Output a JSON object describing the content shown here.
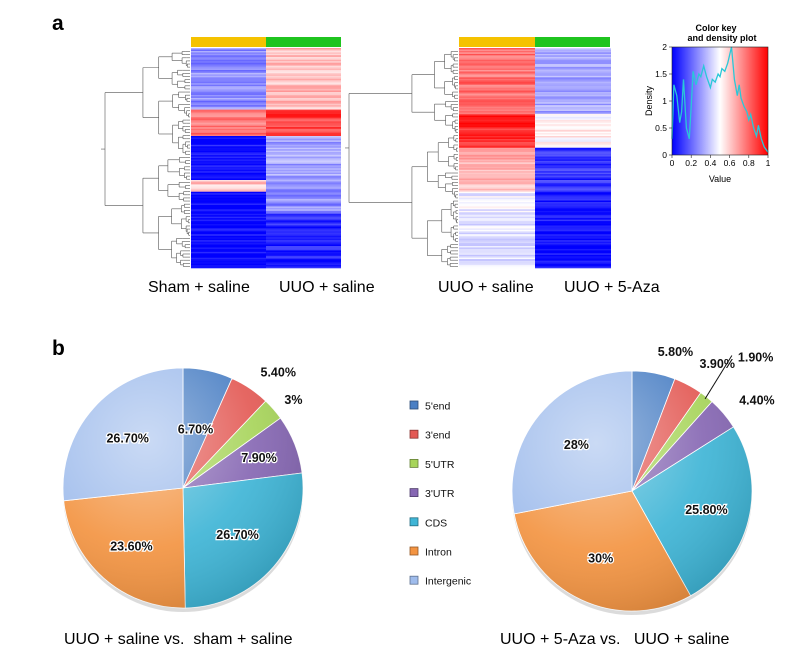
{
  "panel_a": {
    "label": "a",
    "heatmaps": [
      {
        "columns": [
          "Sham + saline",
          "UUO + saline"
        ],
        "group_colors": [
          "#f5c200",
          "#1fc41f"
        ]
      },
      {
        "columns": [
          "UUO + saline",
          "UUO + 5-Aza"
        ],
        "group_colors": [
          "#f5c200",
          "#1fc41f"
        ]
      }
    ],
    "color_key": {
      "title_line1": "Color key",
      "title_line2": "and density plot",
      "xlabel": "Value",
      "ylabel": "Density",
      "xticks": [
        "0",
        "0.2",
        "0.4",
        "0.6",
        "0.8",
        "1"
      ],
      "yticks": [
        "0",
        "0.5",
        "1",
        "1.5",
        "2"
      ],
      "xlim": [
        0,
        1
      ],
      "ylim": [
        0,
        2
      ],
      "gradient": [
        "#0000ff",
        "#ffffff",
        "#ff0000"
      ],
      "density_color": "#29c8d8",
      "density_x": [
        0,
        0.02,
        0.05,
        0.08,
        0.1,
        0.12,
        0.15,
        0.18,
        0.2,
        0.22,
        0.25,
        0.28,
        0.3,
        0.33,
        0.36,
        0.4,
        0.42,
        0.45,
        0.48,
        0.5,
        0.52,
        0.55,
        0.58,
        0.6,
        0.62,
        0.65,
        0.68,
        0.7,
        0.72,
        0.75,
        0.78,
        0.8,
        0.82,
        0.85,
        0.88,
        0.9,
        0.93,
        0.96,
        1.0
      ],
      "density_y": [
        0.3,
        1.3,
        1.1,
        0.6,
        0.8,
        1.4,
        0.5,
        0.3,
        0.9,
        1.55,
        1.3,
        1.5,
        1.45,
        1.65,
        1.45,
        1.25,
        1.4,
        1.35,
        1.5,
        1.45,
        1.6,
        1.55,
        1.7,
        1.85,
        2.0,
        1.4,
        1.1,
        1.3,
        1.05,
        0.9,
        0.8,
        0.65,
        0.75,
        0.5,
        0.35,
        0.55,
        0.3,
        0.15,
        0.05
      ]
    }
  },
  "panel_b": {
    "label": "b",
    "legend": [
      {
        "label": "5'end",
        "color": "#4a7fc4"
      },
      {
        "label": "3'end",
        "color": "#e35a55"
      },
      {
        "label": "5'UTR",
        "color": "#a7d45a"
      },
      {
        "label": "3'UTR",
        "color": "#8667b3"
      },
      {
        "label": "CDS",
        "color": "#3fb5d6"
      },
      {
        "label": "Intron",
        "color": "#f39442"
      },
      {
        "label": "Intergenic",
        "color": "#9fbcec"
      }
    ]
  },
  "chart_data": [
    {
      "type": "pie",
      "title": "UUO + saline vs.  sham + saline",
      "categories": [
        "5'end",
        "3'end",
        "5'UTR",
        "3'UTR",
        "CDS",
        "Intron",
        "Intergenic"
      ],
      "values": [
        6.7,
        5.4,
        3,
        7.9,
        26.7,
        23.6,
        26.7
      ],
      "labels": [
        "6.70%",
        "5.40%",
        "3%",
        "7.90%",
        "26.70%",
        "23.60%",
        "26.70%"
      ]
    },
    {
      "type": "pie",
      "title": "UUO + 5-Aza vs.   UUO + saline",
      "categories": [
        "5'end",
        "3'end",
        "5'UTR",
        "3'UTR",
        "CDS",
        "Intron",
        "Intergenic"
      ],
      "values": [
        5.8,
        3.9,
        1.9,
        4.4,
        25.8,
        30,
        28
      ],
      "labels": [
        "5.80%",
        "3.90%",
        "1.90%",
        "4.40%",
        "25.80%",
        "30%",
        "28%"
      ]
    }
  ]
}
